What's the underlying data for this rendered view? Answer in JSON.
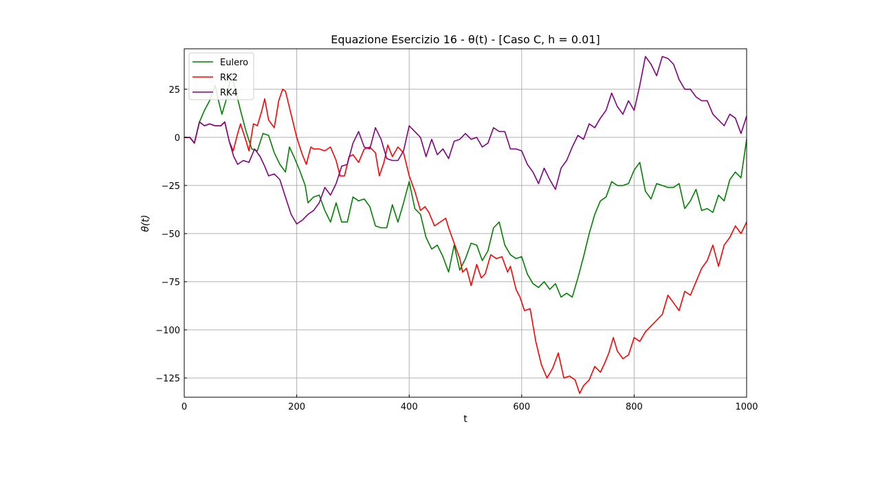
{
  "chart_data": {
    "type": "line",
    "title": "Equazione Esercizio 16 - θ(t) - [Caso C, h = 0.01]",
    "xlabel": "t",
    "ylabel": "θ(t)",
    "xlim": [
      0,
      1000
    ],
    "ylim": [
      -135,
      46
    ],
    "xticks": [
      0,
      200,
      400,
      600,
      800,
      1000
    ],
    "yticks": [
      -125,
      -100,
      -75,
      -50,
      -25,
      0,
      25
    ],
    "xtick_labels": [
      "0",
      "200",
      "400",
      "600",
      "800",
      "1000"
    ],
    "ytick_labels": [
      "−125",
      "−100",
      "−75",
      "−50",
      "−25",
      "0",
      "25"
    ],
    "grid": true,
    "legend_position": "top-left",
    "series": [
      {
        "name": "Eulero",
        "color": "#008000",
        "points": [
          [
            0,
            0
          ],
          [
            10,
            0
          ],
          [
            18,
            -3
          ],
          [
            27,
            8
          ],
          [
            36,
            14
          ],
          [
            45,
            19
          ],
          [
            55,
            27
          ],
          [
            60,
            20
          ],
          [
            67,
            12
          ],
          [
            75,
            20
          ],
          [
            84,
            33
          ],
          [
            90,
            26
          ],
          [
            100,
            14
          ],
          [
            110,
            3
          ],
          [
            120,
            -6
          ],
          [
            130,
            -7
          ],
          [
            140,
            2
          ],
          [
            150,
            1
          ],
          [
            160,
            -8
          ],
          [
            170,
            -14
          ],
          [
            180,
            -18
          ],
          [
            187,
            -5
          ],
          [
            195,
            -10
          ],
          [
            205,
            -17
          ],
          [
            215,
            -25
          ],
          [
            220,
            -34
          ],
          [
            230,
            -31
          ],
          [
            240,
            -30
          ],
          [
            250,
            -38
          ],
          [
            260,
            -44
          ],
          [
            270,
            -34
          ],
          [
            280,
            -44
          ],
          [
            290,
            -44
          ],
          [
            300,
            -31
          ],
          [
            310,
            -33
          ],
          [
            320,
            -32
          ],
          [
            330,
            -36
          ],
          [
            340,
            -46
          ],
          [
            350,
            -47
          ],
          [
            360,
            -47
          ],
          [
            370,
            -35
          ],
          [
            380,
            -44
          ],
          [
            390,
            -34
          ],
          [
            400,
            -23
          ],
          [
            410,
            -37
          ],
          [
            420,
            -40
          ],
          [
            430,
            -52
          ],
          [
            440,
            -58
          ],
          [
            450,
            -56
          ],
          [
            460,
            -62
          ],
          [
            470,
            -70
          ],
          [
            480,
            -56
          ],
          [
            490,
            -69
          ],
          [
            500,
            -63
          ],
          [
            510,
            -55
          ],
          [
            520,
            -56
          ],
          [
            530,
            -64
          ],
          [
            540,
            -59
          ],
          [
            550,
            -47
          ],
          [
            560,
            -44
          ],
          [
            570,
            -56
          ],
          [
            580,
            -61
          ],
          [
            590,
            -63
          ],
          [
            600,
            -62
          ],
          [
            610,
            -71
          ],
          [
            620,
            -76
          ],
          [
            630,
            -78
          ],
          [
            640,
            -75
          ],
          [
            650,
            -79
          ],
          [
            660,
            -76
          ],
          [
            670,
            -83
          ],
          [
            680,
            -81
          ],
          [
            690,
            -83
          ],
          [
            700,
            -73
          ],
          [
            710,
            -62
          ],
          [
            720,
            -50
          ],
          [
            730,
            -40
          ],
          [
            740,
            -33
          ],
          [
            750,
            -31
          ],
          [
            760,
            -23
          ],
          [
            770,
            -25
          ],
          [
            780,
            -25
          ],
          [
            790,
            -24
          ],
          [
            800,
            -17
          ],
          [
            810,
            -13
          ],
          [
            820,
            -28
          ],
          [
            830,
            -32
          ],
          [
            840,
            -24
          ],
          [
            850,
            -25
          ],
          [
            860,
            -26
          ],
          [
            870,
            -26
          ],
          [
            880,
            -24
          ],
          [
            890,
            -37
          ],
          [
            900,
            -33
          ],
          [
            910,
            -27
          ],
          [
            920,
            -38
          ],
          [
            930,
            -37
          ],
          [
            940,
            -39
          ],
          [
            950,
            -30
          ],
          [
            960,
            -33
          ],
          [
            970,
            -22
          ],
          [
            980,
            -18
          ],
          [
            990,
            -21
          ],
          [
            1000,
            -1
          ]
        ]
      },
      {
        "name": "RK2",
        "color": "#ff0000",
        "points": [
          [
            0,
            0
          ],
          [
            10,
            0
          ],
          [
            18,
            -3
          ],
          [
            27,
            8
          ],
          [
            36,
            6
          ],
          [
            45,
            7
          ],
          [
            55,
            6
          ],
          [
            65,
            6
          ],
          [
            72,
            8
          ],
          [
            80,
            -2
          ],
          [
            87,
            -7
          ],
          [
            95,
            2
          ],
          [
            100,
            7
          ],
          [
            110,
            -2
          ],
          [
            115,
            -7
          ],
          [
            123,
            7
          ],
          [
            130,
            6
          ],
          [
            138,
            14
          ],
          [
            143,
            20
          ],
          [
            150,
            9
          ],
          [
            160,
            5
          ],
          [
            168,
            19
          ],
          [
            175,
            25
          ],
          [
            180,
            24
          ],
          [
            190,
            12
          ],
          [
            200,
            0
          ],
          [
            210,
            -9
          ],
          [
            217,
            -14
          ],
          [
            225,
            -5
          ],
          [
            230,
            -6
          ],
          [
            240,
            -6
          ],
          [
            250,
            -7
          ],
          [
            260,
            -5
          ],
          [
            270,
            -12
          ],
          [
            277,
            -20
          ],
          [
            285,
            -20
          ],
          [
            293,
            -10
          ],
          [
            300,
            -9
          ],
          [
            310,
            -13
          ],
          [
            320,
            -6
          ],
          [
            330,
            -5
          ],
          [
            340,
            -8
          ],
          [
            347,
            -20
          ],
          [
            355,
            -13
          ],
          [
            362,
            -4
          ],
          [
            370,
            -10
          ],
          [
            380,
            -5
          ],
          [
            390,
            -8
          ],
          [
            400,
            -20
          ],
          [
            410,
            -28
          ],
          [
            420,
            -38
          ],
          [
            428,
            -36
          ],
          [
            435,
            -39
          ],
          [
            445,
            -46
          ],
          [
            455,
            -44
          ],
          [
            465,
            -42
          ],
          [
            470,
            -47
          ],
          [
            480,
            -55
          ],
          [
            490,
            -63
          ],
          [
            495,
            -70
          ],
          [
            502,
            -68
          ],
          [
            510,
            -77
          ],
          [
            520,
            -66
          ],
          [
            528,
            -73
          ],
          [
            535,
            -71
          ],
          [
            545,
            -61
          ],
          [
            555,
            -63
          ],
          [
            565,
            -62
          ],
          [
            575,
            -70
          ],
          [
            580,
            -67
          ],
          [
            590,
            -79
          ],
          [
            597,
            -83
          ],
          [
            605,
            -90
          ],
          [
            615,
            -89
          ],
          [
            625,
            -106
          ],
          [
            635,
            -118
          ],
          [
            645,
            -125
          ],
          [
            655,
            -120
          ],
          [
            665,
            -112
          ],
          [
            675,
            -125
          ],
          [
            685,
            -124
          ],
          [
            695,
            -126
          ],
          [
            703,
            -133
          ],
          [
            710,
            -129
          ],
          [
            720,
            -126
          ],
          [
            730,
            -119
          ],
          [
            740,
            -122
          ],
          [
            748,
            -117
          ],
          [
            755,
            -112
          ],
          [
            763,
            -104
          ],
          [
            770,
            -111
          ],
          [
            780,
            -115
          ],
          [
            790,
            -113
          ],
          [
            800,
            -104
          ],
          [
            810,
            -106
          ],
          [
            820,
            -101
          ],
          [
            830,
            -98
          ],
          [
            840,
            -95
          ],
          [
            850,
            -92
          ],
          [
            860,
            -82
          ],
          [
            870,
            -86
          ],
          [
            880,
            -90
          ],
          [
            890,
            -80
          ],
          [
            900,
            -82
          ],
          [
            910,
            -75
          ],
          [
            920,
            -68
          ],
          [
            930,
            -64
          ],
          [
            940,
            -56
          ],
          [
            950,
            -67
          ],
          [
            960,
            -56
          ],
          [
            970,
            -52
          ],
          [
            980,
            -46
          ],
          [
            990,
            -50
          ],
          [
            1000,
            -44
          ]
        ]
      },
      {
        "name": "RK4",
        "color": "#800080",
        "points": [
          [
            0,
            0
          ],
          [
            10,
            0
          ],
          [
            18,
            -3
          ],
          [
            27,
            8
          ],
          [
            36,
            6
          ],
          [
            45,
            7
          ],
          [
            55,
            6
          ],
          [
            65,
            6
          ],
          [
            72,
            8
          ],
          [
            80,
            -2
          ],
          [
            88,
            -10
          ],
          [
            95,
            -14
          ],
          [
            105,
            -12
          ],
          [
            115,
            -13
          ],
          [
            125,
            -6
          ],
          [
            135,
            -10
          ],
          [
            143,
            -15
          ],
          [
            150,
            -20
          ],
          [
            160,
            -19
          ],
          [
            170,
            -22
          ],
          [
            180,
            -31
          ],
          [
            190,
            -40
          ],
          [
            200,
            -45
          ],
          [
            210,
            -43
          ],
          [
            220,
            -40
          ],
          [
            230,
            -38
          ],
          [
            240,
            -34
          ],
          [
            250,
            -26
          ],
          [
            260,
            -30
          ],
          [
            270,
            -24
          ],
          [
            280,
            -15
          ],
          [
            290,
            -14
          ],
          [
            300,
            -3
          ],
          [
            310,
            3
          ],
          [
            320,
            -5
          ],
          [
            330,
            -6
          ],
          [
            340,
            5
          ],
          [
            350,
            -1
          ],
          [
            360,
            -11
          ],
          [
            370,
            -12
          ],
          [
            380,
            -12
          ],
          [
            390,
            -7
          ],
          [
            400,
            6
          ],
          [
            410,
            3
          ],
          [
            420,
            0
          ],
          [
            430,
            -10
          ],
          [
            440,
            -1
          ],
          [
            450,
            -9
          ],
          [
            460,
            -6
          ],
          [
            470,
            -11
          ],
          [
            480,
            -2
          ],
          [
            490,
            -1
          ],
          [
            500,
            2
          ],
          [
            510,
            -1
          ],
          [
            520,
            0
          ],
          [
            530,
            -5
          ],
          [
            540,
            -3
          ],
          [
            550,
            5
          ],
          [
            560,
            3
          ],
          [
            570,
            3
          ],
          [
            580,
            -6
          ],
          [
            590,
            -6
          ],
          [
            600,
            -7
          ],
          [
            610,
            -14
          ],
          [
            620,
            -18
          ],
          [
            630,
            -24
          ],
          [
            640,
            -16
          ],
          [
            650,
            -22
          ],
          [
            660,
            -27
          ],
          [
            670,
            -16
          ],
          [
            680,
            -12
          ],
          [
            690,
            -5
          ],
          [
            700,
            1
          ],
          [
            710,
            -1
          ],
          [
            720,
            7
          ],
          [
            730,
            5
          ],
          [
            740,
            10
          ],
          [
            750,
            14
          ],
          [
            760,
            23
          ],
          [
            770,
            16
          ],
          [
            780,
            12
          ],
          [
            790,
            19
          ],
          [
            800,
            14
          ],
          [
            810,
            27
          ],
          [
            820,
            42
          ],
          [
            830,
            38
          ],
          [
            840,
            32
          ],
          [
            850,
            42
          ],
          [
            860,
            41
          ],
          [
            870,
            38
          ],
          [
            880,
            30
          ],
          [
            890,
            25
          ],
          [
            900,
            25
          ],
          [
            910,
            21
          ],
          [
            920,
            19
          ],
          [
            930,
            19
          ],
          [
            940,
            12
          ],
          [
            950,
            9
          ],
          [
            960,
            6
          ],
          [
            970,
            12
          ],
          [
            980,
            10
          ],
          [
            990,
            2
          ],
          [
            1000,
            11
          ]
        ]
      }
    ]
  }
}
